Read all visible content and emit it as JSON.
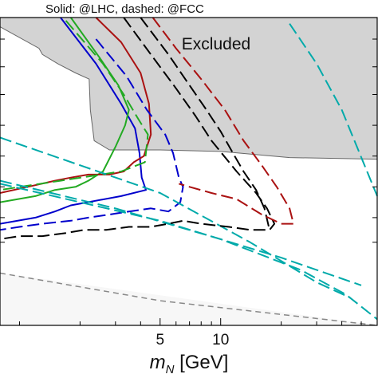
{
  "title": "Solid: @LHC, dashed: @FCC",
  "xlabel": {
    "main": "m",
    "sub": "N",
    "unit": "[GeV]"
  },
  "chart_data": {
    "type": "line",
    "title": "Solid: @LHC, dashed: @FCC",
    "xlabel": "m_N [GeV]",
    "ylabel": "",
    "xscale": "log",
    "xlim": [
      0.8,
      60
    ],
    "ylim": [
      0,
      1
    ],
    "grid": false,
    "x_ticks": [
      {
        "value": 5,
        "label": "5"
      },
      {
        "value": 10,
        "label": "10"
      }
    ],
    "x_minor_ticks": [
      1,
      2,
      3,
      4,
      6,
      7,
      8,
      9,
      20,
      30,
      40,
      50
    ],
    "y_ticks": [
      0.27,
      0.35,
      0.45,
      0.55,
      0.65,
      0.75,
      0.84,
      0.93
    ],
    "regions": [
      {
        "name": "Excluded",
        "fill": "#d3d3d3",
        "label": "Excluded",
        "boundary": [
          [
            0.8,
            0.97
          ],
          [
            1.25,
            0.9
          ],
          [
            1.3,
            0.88
          ],
          [
            1.55,
            0.85
          ],
          [
            1.9,
            0.82
          ],
          [
            2.22,
            0.8
          ],
          [
            2.25,
            0.7
          ],
          [
            2.35,
            0.6
          ],
          [
            2.8,
            0.57
          ],
          [
            5,
            0.57
          ],
          [
            10,
            0.565
          ],
          [
            22,
            0.545
          ],
          [
            60,
            0.54
          ]
        ]
      },
      {
        "name": "light-region",
        "fill": "#f7f7f7",
        "boundary": [
          [
            0.8,
            0.17
          ],
          [
            60,
            0.0
          ]
        ]
      }
    ],
    "series": [
      {
        "color": "#888888",
        "style": "dashed",
        "x": [
          0.8,
          5,
          60
        ],
        "y": [
          0.17,
          0.08,
          0.0
        ]
      },
      {
        "color": "#0000cc",
        "style": "solid",
        "x": [
          1.6,
          2.4,
          3.2,
          3.75,
          3.95,
          4.05,
          4.25,
          3.2,
          1.8,
          1.5,
          1.2,
          0.8
        ],
        "y": [
          1.0,
          0.85,
          0.72,
          0.64,
          0.56,
          0.48,
          0.44,
          0.42,
          0.39,
          0.37,
          0.35,
          0.33
        ]
      },
      {
        "color": "#22aa22",
        "style": "solid",
        "x": [
          1.8,
          2.5,
          3.1,
          3.5,
          3.35,
          3.0,
          2.6,
          2.2,
          1.9,
          1.5,
          1.2,
          0.8
        ],
        "y": [
          1.0,
          0.87,
          0.78,
          0.7,
          0.65,
          0.58,
          0.5,
          0.47,
          0.45,
          0.44,
          0.42,
          0.4
        ]
      },
      {
        "color": "#aa1111",
        "style": "solid",
        "x": [
          2.4,
          3.2,
          4.0,
          4.4,
          4.5,
          4.15,
          3.7,
          3.3,
          2.8,
          2.2,
          1.8,
          1.5,
          1.1,
          0.8
        ],
        "y": [
          1.0,
          0.92,
          0.82,
          0.72,
          0.62,
          0.55,
          0.53,
          0.5,
          0.49,
          0.49,
          0.48,
          0.47,
          0.45,
          0.43
        ]
      },
      {
        "color": "#22aa22",
        "style": "dashed",
        "x": [
          1.7,
          2.6,
          3.3,
          3.9,
          4.35,
          4.2,
          3.2,
          1.6,
          0.8
        ],
        "y": [
          0.99,
          0.85,
          0.75,
          0.67,
          0.62,
          0.53,
          0.5,
          0.47,
          0.44
        ]
      },
      {
        "color": "#0000cc",
        "style": "dashed",
        "x": [
          2.4,
          3.4,
          4.3,
          5.3,
          5.8,
          6.2,
          6.5,
          6.3,
          5.5,
          4.5,
          3.5,
          2.8,
          2.2,
          1.8,
          1.3,
          1.0,
          0.8
        ],
        "y": [
          0.93,
          0.81,
          0.7,
          0.62,
          0.56,
          0.48,
          0.45,
          0.4,
          0.37,
          0.38,
          0.37,
          0.36,
          0.35,
          0.34,
          0.33,
          0.32,
          0.31
        ]
      },
      {
        "color": "#00aaaa",
        "style": "dashed",
        "x": [
          0.8,
          5,
          14,
          30,
          44
        ],
        "y": [
          0.61,
          0.43,
          0.27,
          0.14,
          0.09
        ]
      },
      {
        "color": "#00aaaa",
        "style": "dashed",
        "x": [
          0.8,
          3,
          10,
          25,
          42,
          60
        ],
        "y": [
          0.47,
          0.38,
          0.28,
          0.18,
          0.1,
          0.02
        ]
      },
      {
        "color": "#00aaaa",
        "style": "dashed",
        "x": [
          0.8,
          5,
          20,
          50
        ],
        "y": [
          0.46,
          0.34,
          0.22,
          0.13
        ]
      },
      {
        "color": "#00aaaa",
        "style": "dashed",
        "x": [
          22,
          30,
          40,
          60
        ],
        "y": [
          0.98,
          0.85,
          0.7,
          0.42
        ]
      },
      {
        "color": "#000000",
        "style": "dashed",
        "x": [
          3.3,
          4.5,
          6,
          7.5,
          9,
          12,
          15,
          17,
          18.5,
          17.5,
          14,
          11,
          8,
          6.5,
          5.5,
          4.5,
          3.5,
          2.7,
          2.1,
          1.7,
          1.3,
          1.0,
          0.8
        ],
        "y": [
          1.0,
          0.88,
          0.77,
          0.68,
          0.6,
          0.5,
          0.43,
          0.38,
          0.33,
          0.31,
          0.31,
          0.32,
          0.33,
          0.34,
          0.33,
          0.32,
          0.32,
          0.31,
          0.31,
          0.3,
          0.29,
          0.29,
          0.28
        ]
      },
      {
        "color": "#000000",
        "style": "dashed",
        "x": [
          4,
          5.5,
          7,
          8.5,
          10,
          11.5,
          13,
          15,
          16.5,
          17.5
        ],
        "y": [
          1.0,
          0.88,
          0.78,
          0.7,
          0.63,
          0.56,
          0.5,
          0.44,
          0.38,
          0.31
        ]
      },
      {
        "color": "#aa1111",
        "style": "dashed",
        "x": [
          4.6,
          6,
          8,
          10.5,
          13,
          16,
          19,
          22,
          23,
          20,
          16,
          12,
          9,
          7,
          6.2
        ],
        "y": [
          1.0,
          0.9,
          0.8,
          0.7,
          0.6,
          0.52,
          0.45,
          0.38,
          0.33,
          0.33,
          0.36,
          0.41,
          0.43,
          0.45,
          0.46
        ]
      }
    ]
  }
}
